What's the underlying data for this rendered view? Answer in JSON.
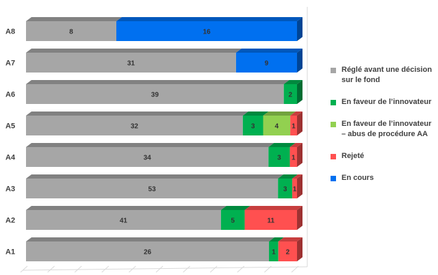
{
  "chart_data": {
    "type": "bar",
    "orientation": "horizontal",
    "stacked": true,
    "categories": [
      "A8",
      "A7",
      "A6",
      "A5",
      "A4",
      "A3",
      "A2",
      "A1"
    ],
    "series": [
      {
        "name": "Réglé avant une décision sur le fond",
        "color": "#a6a6a6",
        "values": [
          8,
          31,
          39,
          32,
          34,
          53,
          41,
          26
        ]
      },
      {
        "name": "En faveur de l’innovateur",
        "color": "#00b050",
        "values": [
          0,
          0,
          2,
          3,
          3,
          3,
          5,
          1
        ]
      },
      {
        "name": "En faveur de l’innovateur – abus de procédure AA",
        "color": "#92d050",
        "values": [
          0,
          0,
          0,
          4,
          0,
          0,
          0,
          0
        ]
      },
      {
        "name": "Rejeté",
        "color": "#ff5050",
        "values": [
          0,
          0,
          0,
          1,
          1,
          1,
          11,
          2
        ]
      },
      {
        "name": "En cours",
        "color": "#0070f0",
        "values": [
          16,
          9,
          0,
          0,
          0,
          0,
          0,
          0
        ]
      }
    ],
    "title": "",
    "xlabel": "",
    "ylabel": "",
    "legend_position": "right"
  }
}
